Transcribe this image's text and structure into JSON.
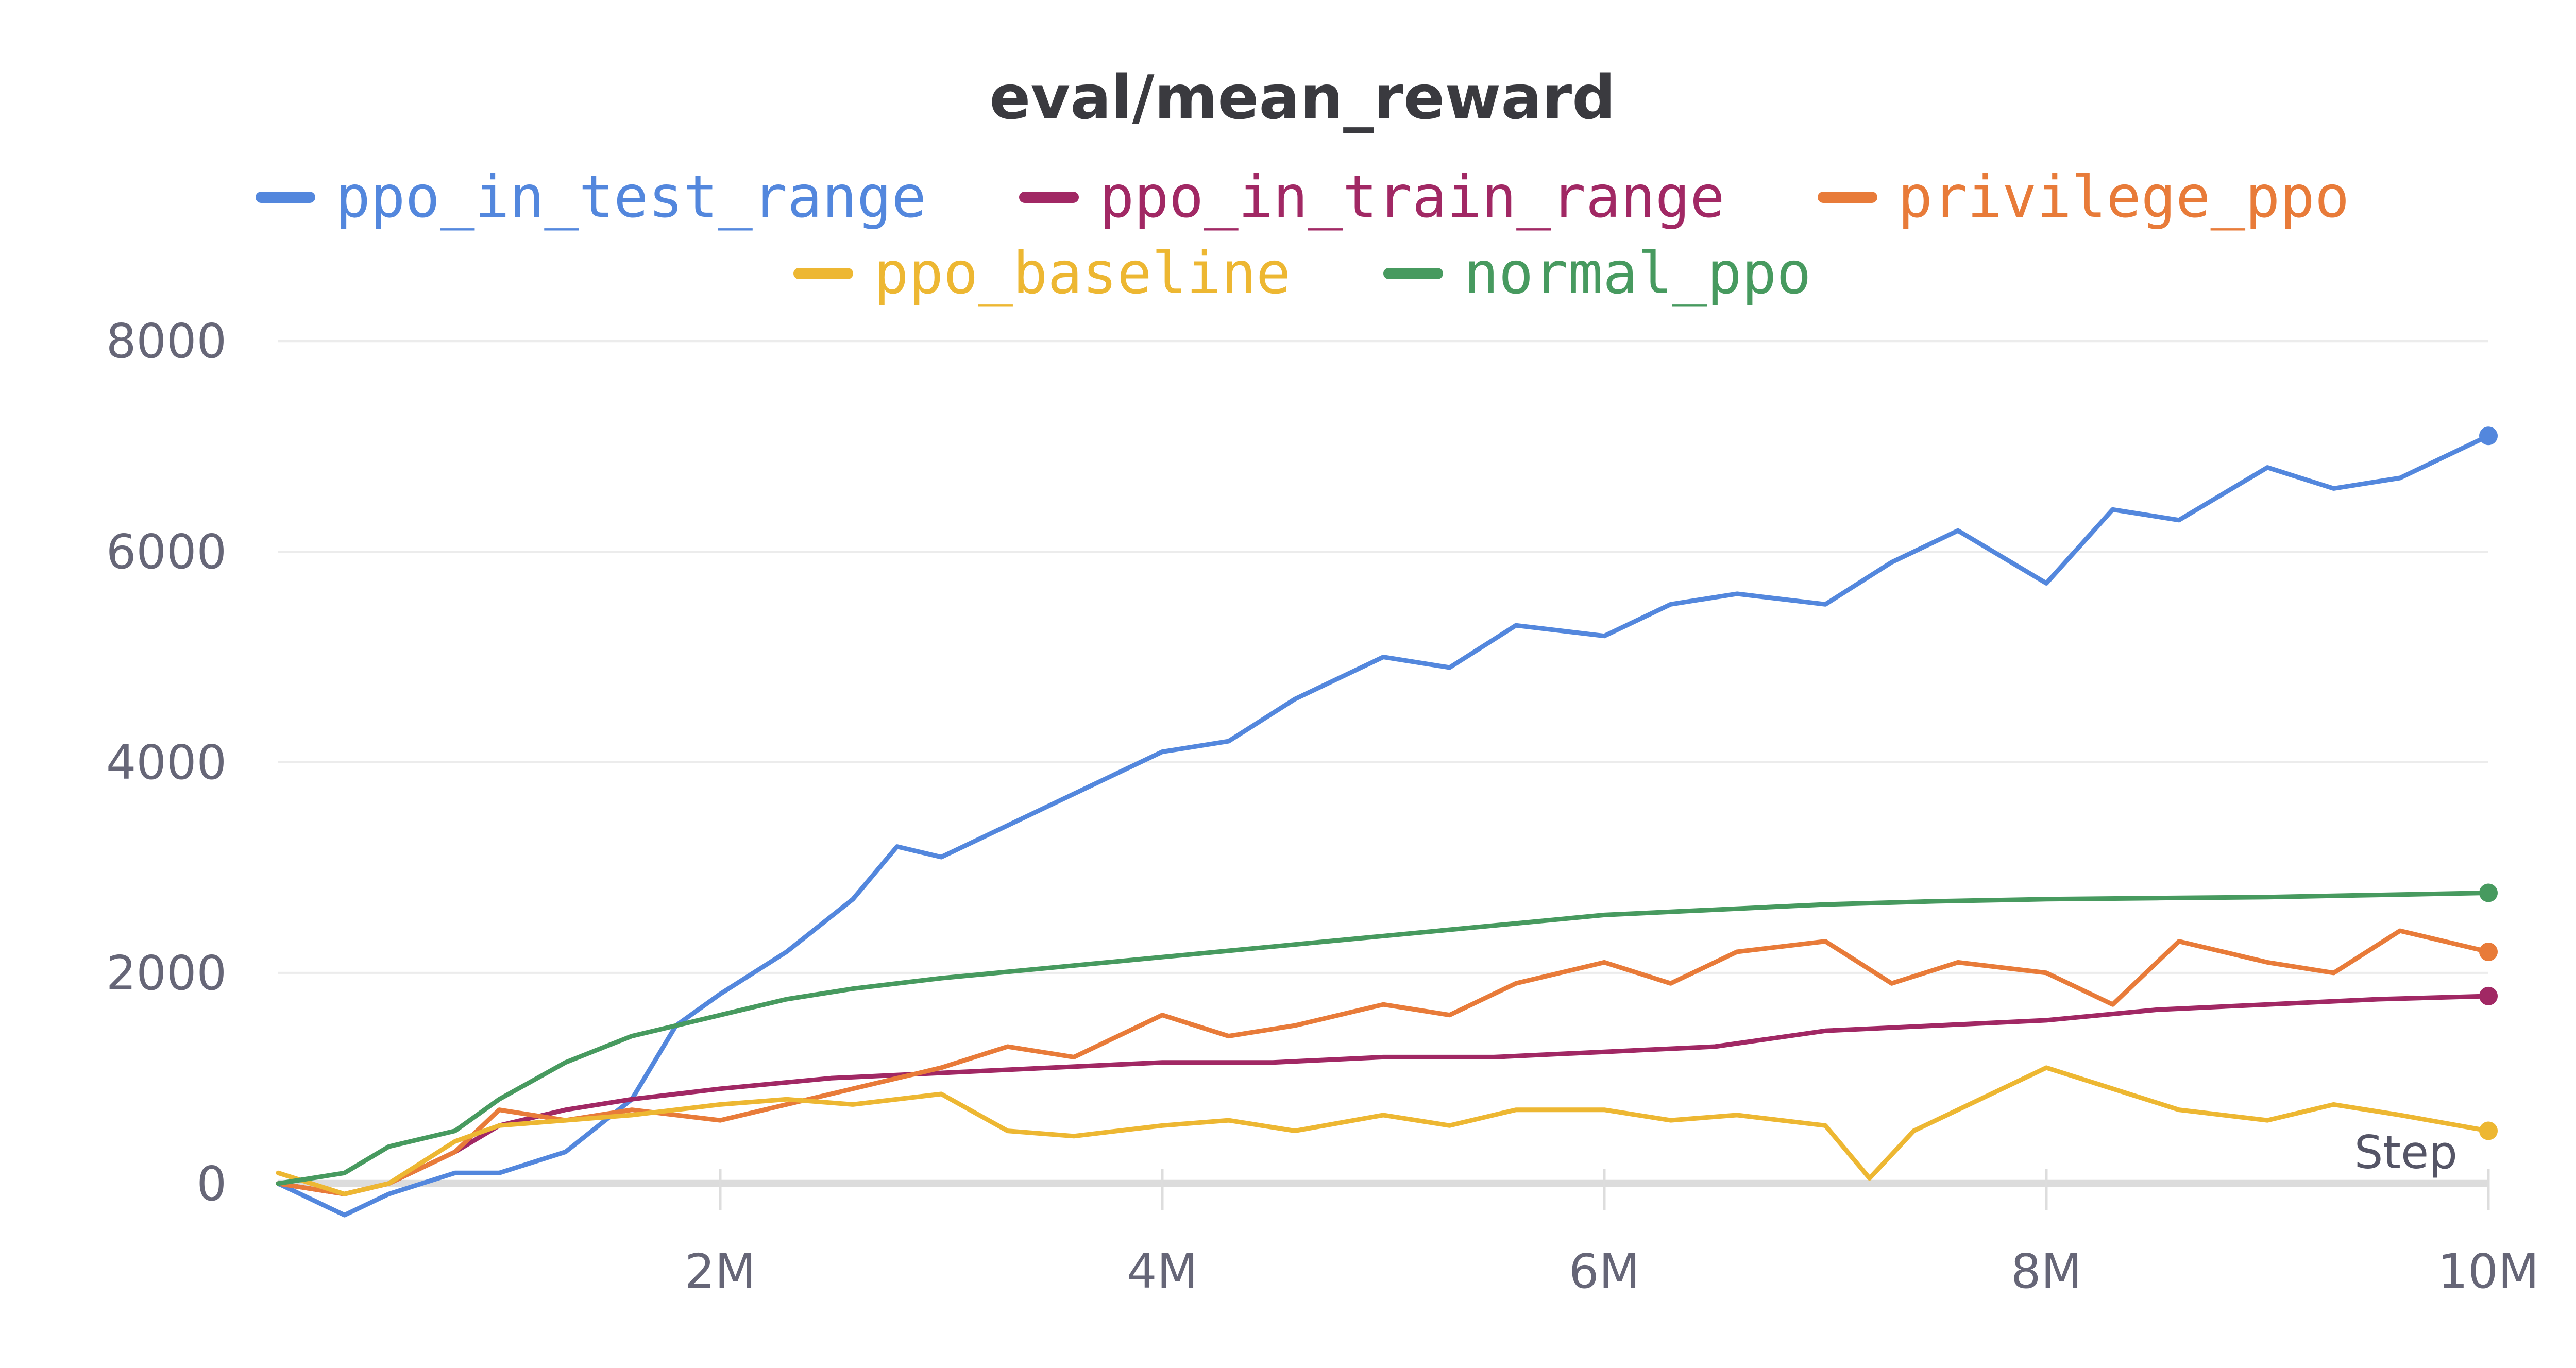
{
  "chart_data": {
    "type": "line",
    "title": "eval/mean_reward",
    "xlabel": "Step",
    "ylabel": "",
    "xlim": [
      0,
      10000000
    ],
    "ylim": [
      -500,
      8500
    ],
    "x_ticks": [
      {
        "value": 2000000,
        "label": "2M"
      },
      {
        "value": 4000000,
        "label": "4M"
      },
      {
        "value": 6000000,
        "label": "6M"
      },
      {
        "value": 8000000,
        "label": "8M"
      },
      {
        "value": 10000000,
        "label": "10M"
      }
    ],
    "y_ticks": [
      {
        "value": 0,
        "label": "0"
      },
      {
        "value": 2000,
        "label": "2000"
      },
      {
        "value": 4000,
        "label": "4000"
      },
      {
        "value": 6000,
        "label": "6000"
      },
      {
        "value": 8000,
        "label": "8000"
      }
    ],
    "grid": "horizontal",
    "legend": "top-center",
    "series": [
      {
        "name": "ppo_in_test_range",
        "color": "#5387dd",
        "x": [
          0,
          300000,
          500000,
          800000,
          1000000,
          1300000,
          1600000,
          1800000,
          2000000,
          2300000,
          2600000,
          2800000,
          3000000,
          3300000,
          3600000,
          4000000,
          4300000,
          4600000,
          5000000,
          5300000,
          5600000,
          6000000,
          6300000,
          6600000,
          7000000,
          7300000,
          7600000,
          8000000,
          8300000,
          8600000,
          9000000,
          9300000,
          9600000,
          10000000
        ],
        "y": [
          0,
          -300,
          -100,
          100,
          100,
          300,
          800,
          1500,
          1800,
          2200,
          2700,
          3200,
          3100,
          3400,
          3700,
          4100,
          4200,
          4600,
          5000,
          4900,
          5300,
          5200,
          5500,
          5600,
          5500,
          5900,
          6200,
          5700,
          6400,
          6300,
          6800,
          6600,
          6700,
          7100
        ]
      },
      {
        "name": "ppo_in_train_range",
        "color": "#a12864",
        "x": [
          0,
          300000,
          500000,
          800000,
          1000000,
          1300000,
          1600000,
          2000000,
          2500000,
          3000000,
          3500000,
          4000000,
          4500000,
          5000000,
          5500000,
          6000000,
          6500000,
          7000000,
          7500000,
          8000000,
          8500000,
          9000000,
          9500000,
          10000000
        ],
        "y": [
          0,
          -100,
          0,
          300,
          550,
          700,
          800,
          900,
          1000,
          1050,
          1100,
          1150,
          1150,
          1200,
          1200,
          1250,
          1300,
          1450,
          1500,
          1550,
          1650,
          1700,
          1750,
          1780
        ]
      },
      {
        "name": "privilege_ppo",
        "color": "#e87b39",
        "x": [
          0,
          300000,
          500000,
          800000,
          1000000,
          1300000,
          1600000,
          2000000,
          2300000,
          2600000,
          3000000,
          3300000,
          3600000,
          4000000,
          4300000,
          4600000,
          5000000,
          5300000,
          5600000,
          6000000,
          6300000,
          6600000,
          7000000,
          7300000,
          7600000,
          8000000,
          8300000,
          8600000,
          9000000,
          9300000,
          9600000,
          10000000
        ],
        "y": [
          0,
          -100,
          0,
          300,
          700,
          600,
          700,
          600,
          750,
          900,
          1100,
          1300,
          1200,
          1600,
          1400,
          1500,
          1700,
          1600,
          1900,
          2100,
          1900,
          2200,
          2300,
          1900,
          2100,
          2000,
          1700,
          2300,
          2100,
          2000,
          2400,
          2200
        ]
      },
      {
        "name": "ppo_baseline",
        "color": "#edb732",
        "x": [
          0,
          300000,
          500000,
          800000,
          1000000,
          1300000,
          1600000,
          2000000,
          2300000,
          2600000,
          3000000,
          3300000,
          3600000,
          4000000,
          4300000,
          4600000,
          5000000,
          5300000,
          5600000,
          6000000,
          6300000,
          6600000,
          7000000,
          7200000,
          7400000,
          7600000,
          8000000,
          8300000,
          8600000,
          9000000,
          9300000,
          9600000,
          10000000
        ],
        "y": [
          100,
          -100,
          0,
          400,
          550,
          600,
          650,
          750,
          800,
          750,
          850,
          500,
          450,
          550,
          600,
          500,
          650,
          550,
          700,
          700,
          600,
          650,
          550,
          50,
          500,
          700,
          1100,
          900,
          700,
          600,
          750,
          650,
          500
        ]
      },
      {
        "name": "normal_ppo",
        "color": "#479a5f",
        "x": [
          0,
          300000,
          500000,
          800000,
          1000000,
          1300000,
          1600000,
          2000000,
          2300000,
          2600000,
          3000000,
          3500000,
          4000000,
          4500000,
          5000000,
          5500000,
          6000000,
          6500000,
          7000000,
          7500000,
          8000000,
          8500000,
          9000000,
          9500000,
          10000000
        ],
        "y": [
          0,
          100,
          350,
          500,
          800,
          1150,
          1400,
          1600,
          1750,
          1850,
          1950,
          2050,
          2150,
          2250,
          2350,
          2450,
          2550,
          2600,
          2650,
          2680,
          2700,
          2710,
          2720,
          2740,
          2760
        ]
      }
    ]
  }
}
